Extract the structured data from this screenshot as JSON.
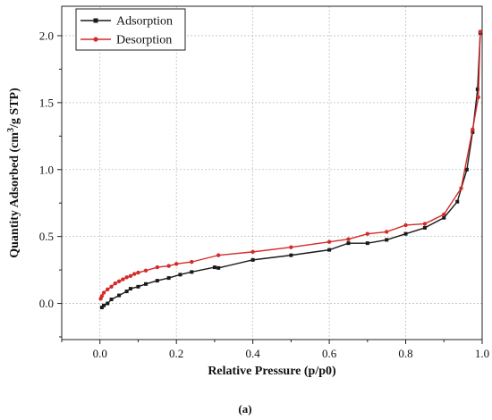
{
  "chart_data": {
    "type": "line",
    "title": "",
    "xlabel": "Relative Pressure (p/p0)",
    "ylabel": "Quantity Adsorbed (cm³/g STP)",
    "ylabel_parts": {
      "before": "Quantity Adsorbed (cm",
      "sup": "3",
      "after": "/g STP)"
    },
    "xlim": [
      -0.1,
      1.0
    ],
    "ylim": [
      -0.27,
      2.22
    ],
    "x_ticks": [
      0.0,
      0.2,
      0.4,
      0.6,
      0.8,
      1.0
    ],
    "x_tick_labels": [
      "0.0",
      "0.2",
      "0.4",
      "0.6",
      "0.8",
      "1.0"
    ],
    "y_ticks": [
      0.0,
      0.5,
      1.0,
      1.5,
      2.0
    ],
    "y_tick_labels": [
      "0.0",
      "0.5",
      "1.0",
      "1.5",
      "2.0"
    ],
    "grid": true,
    "legend_position": "top-left",
    "caption": "(a)",
    "series": [
      {
        "name": "Adsorption",
        "color": "#1a1a1a",
        "points": [
          [
            0.005,
            -0.03
          ],
          [
            0.01,
            -0.015
          ],
          [
            0.02,
            0.0
          ],
          [
            0.03,
            0.03
          ],
          [
            0.05,
            0.06
          ],
          [
            0.07,
            0.09
          ],
          [
            0.08,
            0.11
          ],
          [
            0.1,
            0.125
          ],
          [
            0.12,
            0.145
          ],
          [
            0.15,
            0.17
          ],
          [
            0.18,
            0.19
          ],
          [
            0.21,
            0.215
          ],
          [
            0.24,
            0.235
          ],
          [
            0.3,
            0.27
          ],
          [
            0.31,
            0.265
          ],
          [
            0.4,
            0.325
          ],
          [
            0.5,
            0.36
          ],
          [
            0.6,
            0.4
          ],
          [
            0.65,
            0.45
          ],
          [
            0.7,
            0.45
          ],
          [
            0.75,
            0.475
          ],
          [
            0.8,
            0.52
          ],
          [
            0.85,
            0.565
          ],
          [
            0.9,
            0.64
          ],
          [
            0.935,
            0.76
          ],
          [
            0.96,
            1.0
          ],
          [
            0.975,
            1.28
          ],
          [
            0.988,
            1.6
          ],
          [
            0.995,
            2.02
          ]
        ]
      },
      {
        "name": "Desorption",
        "color": "#d42a2a",
        "points": [
          [
            0.995,
            2.03
          ],
          [
            0.99,
            1.54
          ],
          [
            0.975,
            1.3
          ],
          [
            0.945,
            0.86
          ],
          [
            0.9,
            0.665
          ],
          [
            0.85,
            0.595
          ],
          [
            0.8,
            0.585
          ],
          [
            0.75,
            0.535
          ],
          [
            0.7,
            0.52
          ],
          [
            0.65,
            0.48
          ],
          [
            0.6,
            0.46
          ],
          [
            0.5,
            0.42
          ],
          [
            0.4,
            0.385
          ],
          [
            0.31,
            0.36
          ],
          [
            0.24,
            0.31
          ],
          [
            0.2,
            0.295
          ],
          [
            0.18,
            0.28
          ],
          [
            0.15,
            0.27
          ],
          [
            0.12,
            0.245
          ],
          [
            0.1,
            0.23
          ],
          [
            0.09,
            0.22
          ],
          [
            0.08,
            0.205
          ],
          [
            0.07,
            0.195
          ],
          [
            0.06,
            0.18
          ],
          [
            0.05,
            0.165
          ],
          [
            0.04,
            0.15
          ],
          [
            0.03,
            0.125
          ],
          [
            0.02,
            0.105
          ],
          [
            0.01,
            0.08
          ],
          [
            0.005,
            0.055
          ],
          [
            0.002,
            0.035
          ]
        ]
      }
    ]
  }
}
